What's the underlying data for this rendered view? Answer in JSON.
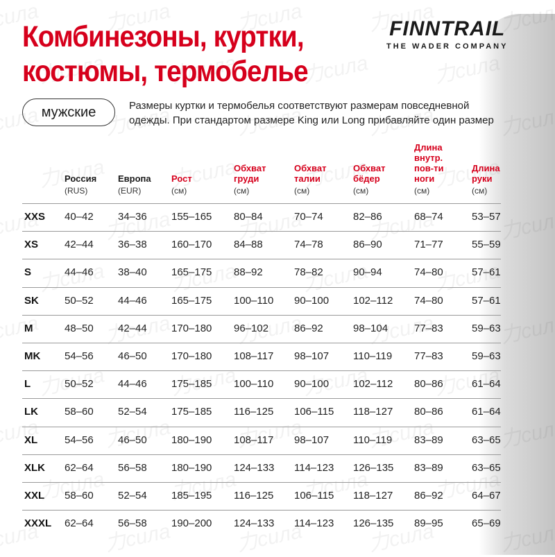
{
  "watermark": "力сила",
  "title_lines": [
    "Комбинезоны, куртки,",
    "костюмы, термобелье"
  ],
  "logo": {
    "brand": "FINNTRAIL",
    "tagline": "THE WADER COMPANY"
  },
  "category_pill": "мужские",
  "note_lines": [
    "Размеры куртки и термобелья соответствуют размерам повседневной",
    "одежды. При стандартом размере King или Long прибавляйте один размер"
  ],
  "accent_color": "#d6001c",
  "columns": [
    {
      "lines": [
        "Россия"
      ],
      "unit": "(RUS)",
      "red": false
    },
    {
      "lines": [
        "Европа"
      ],
      "unit": "(EUR)",
      "red": false
    },
    {
      "lines": [
        "Рост"
      ],
      "unit": "(см)",
      "red": true
    },
    {
      "lines": [
        "Обхват",
        "груди"
      ],
      "unit": "(см)",
      "red": true
    },
    {
      "lines": [
        "Обхват",
        "талии"
      ],
      "unit": "(см)",
      "red": true
    },
    {
      "lines": [
        "Обхват",
        "бёдер"
      ],
      "unit": "(см)",
      "red": true
    },
    {
      "lines": [
        "Длина",
        "внутр.",
        "пов-ти",
        "ноги"
      ],
      "unit": "(см)",
      "red": true
    },
    {
      "lines": [
        "Длина",
        "руки"
      ],
      "unit": "(см)",
      "red": true
    }
  ],
  "rows": [
    [
      "XXS",
      "40–42",
      "34–36",
      "155–165",
      "80–84",
      "70–74",
      "82–86",
      "68–74",
      "53–57"
    ],
    [
      "XS",
      "42–44",
      "36–38",
      "160–170",
      "84–88",
      "74–78",
      "86–90",
      "71–77",
      "55–59"
    ],
    [
      "S",
      "44–46",
      "38–40",
      "165–175",
      "88–92",
      "78–82",
      "90–94",
      "74–80",
      "57–61"
    ],
    [
      "SK",
      "50–52",
      "44–46",
      "165–175",
      "100–110",
      "90–100",
      "102–112",
      "74–80",
      "57–61"
    ],
    [
      "M",
      "48–50",
      "42–44",
      "170–180",
      "96–102",
      "86–92",
      "98–104",
      "77–83",
      "59–63"
    ],
    [
      "MK",
      "54–56",
      "46–50",
      "170–180",
      "108–117",
      "98–107",
      "110–119",
      "77–83",
      "59–63"
    ],
    [
      "L",
      "50–52",
      "44–46",
      "175–185",
      "100–110",
      "90–100",
      "102–112",
      "80–86",
      "61–64"
    ],
    [
      "LK",
      "58–60",
      "52–54",
      "175–185",
      "116–125",
      "106–115",
      "118–127",
      "80–86",
      "61–64"
    ],
    [
      "XL",
      "54–56",
      "46–50",
      "180–190",
      "108–117",
      "98–107",
      "110–119",
      "83–89",
      "63–65"
    ],
    [
      "XLK",
      "62–64",
      "56–58",
      "180–190",
      "124–133",
      "114–123",
      "126–135",
      "83–89",
      "63–65"
    ],
    [
      "XXL",
      "58–60",
      "52–54",
      "185–195",
      "116–125",
      "106–115",
      "118–127",
      "86–92",
      "64–67"
    ],
    [
      "XXXL",
      "62–64",
      "56–58",
      "190–200",
      "124–133",
      "114–123",
      "126–135",
      "89–95",
      "65–69"
    ]
  ]
}
